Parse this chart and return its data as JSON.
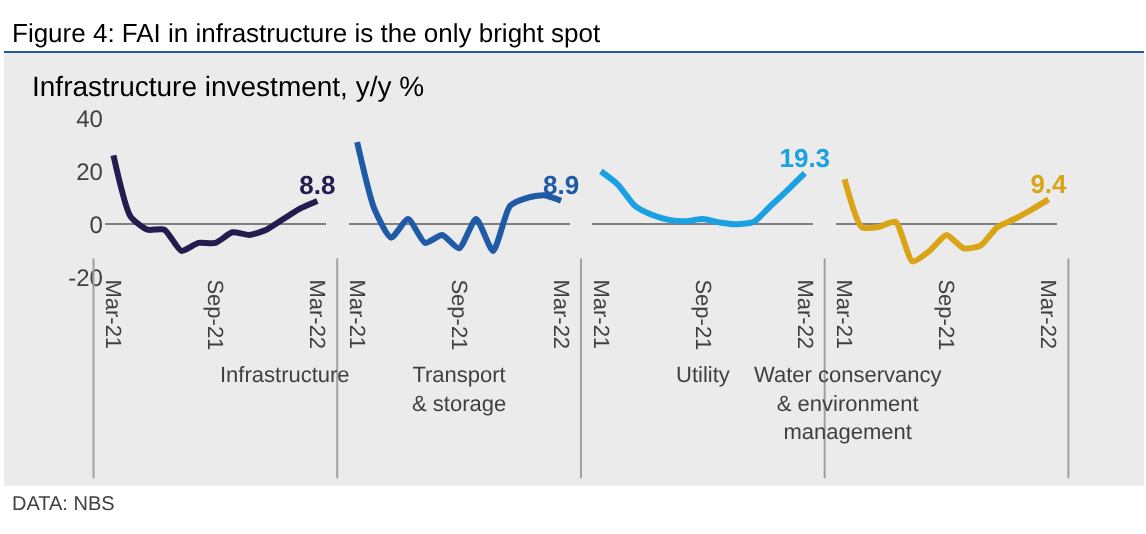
{
  "chart_data": [
    {
      "type": "line",
      "title": "Figure 4: FAI in infrastructure is the only bright spot",
      "ylabel": "Infrastructure investment, y/y %",
      "xlabel": "Infrastructure",
      "annotations": [
        "DATA: NBS"
      ],
      "categories": [
        "Mar-21",
        null,
        null,
        null,
        null,
        null,
        "Sep-21",
        null,
        null,
        null,
        null,
        null,
        "Mar-22"
      ],
      "series": [
        {
          "color": "#221c4f",
          "values": [
            26,
            3,
            -2,
            -2,
            -10,
            -7,
            -7,
            -3,
            -4,
            -2,
            2,
            6,
            8.8
          ],
          "value_labels": [
            null,
            null,
            null,
            null,
            null,
            null,
            null,
            null,
            null,
            null,
            null,
            null,
            "8.8"
          ]
        }
      ],
      "ylim": [
        -20,
        40
      ],
      "yticks": [
        -20,
        0,
        20,
        40
      ]
    },
    {
      "type": "line",
      "xlabel": "Transport & storage",
      "tick_labels": "x",
      "categories": [
        "Mar-21",
        null,
        null,
        null,
        null,
        null,
        "Sep-21",
        null,
        null,
        null,
        null,
        null,
        "Mar-22"
      ],
      "series": [
        {
          "color": "#1f5aa6",
          "values": [
            31,
            6,
            -5,
            2,
            -7,
            -4,
            -9,
            2,
            -10,
            7,
            10,
            11,
            8.9
          ],
          "value_labels": [
            null,
            null,
            null,
            null,
            null,
            null,
            null,
            null,
            null,
            null,
            null,
            null,
            "8.9"
          ]
        }
      ],
      "ylim": [
        -20,
        40
      ]
    },
    {
      "type": "line",
      "xlabel": "Utility",
      "tick_labels": "x",
      "categories": [
        "Mar-21",
        null,
        null,
        null,
        null,
        null,
        "Sep-21",
        null,
        null,
        null,
        null,
        null,
        "Mar-22"
      ],
      "series": [
        {
          "color": "#1ba1e2",
          "values": [
            20,
            15,
            7,
            3.6,
            1.7,
            1.2,
            2,
            0.7,
            0,
            1,
            7,
            13,
            19.3
          ],
          "value_labels": [
            null,
            null,
            null,
            null,
            null,
            null,
            null,
            null,
            null,
            null,
            null,
            null,
            "19.3"
          ]
        }
      ],
      "ylim": [
        -20,
        40
      ]
    },
    {
      "type": "line",
      "xlabel": "Water conservancy & environment management",
      "tick_labels": "x",
      "categories": [
        "Mar-21",
        null,
        null,
        null,
        null,
        null,
        "Sep-21",
        null,
        null,
        null,
        null,
        null,
        "Mar-22"
      ],
      "series": [
        {
          "color": "#d9a516",
          "values": [
            17,
            -1,
            -1,
            1,
            -14,
            -10,
            -4,
            -9,
            -8,
            -1,
            2,
            5.5,
            9.4
          ],
          "value_labels": [
            null,
            null,
            null,
            null,
            null,
            null,
            null,
            null,
            null,
            null,
            null,
            null,
            "9.4"
          ]
        }
      ],
      "ylim": [
        -20,
        40
      ]
    }
  ]
}
